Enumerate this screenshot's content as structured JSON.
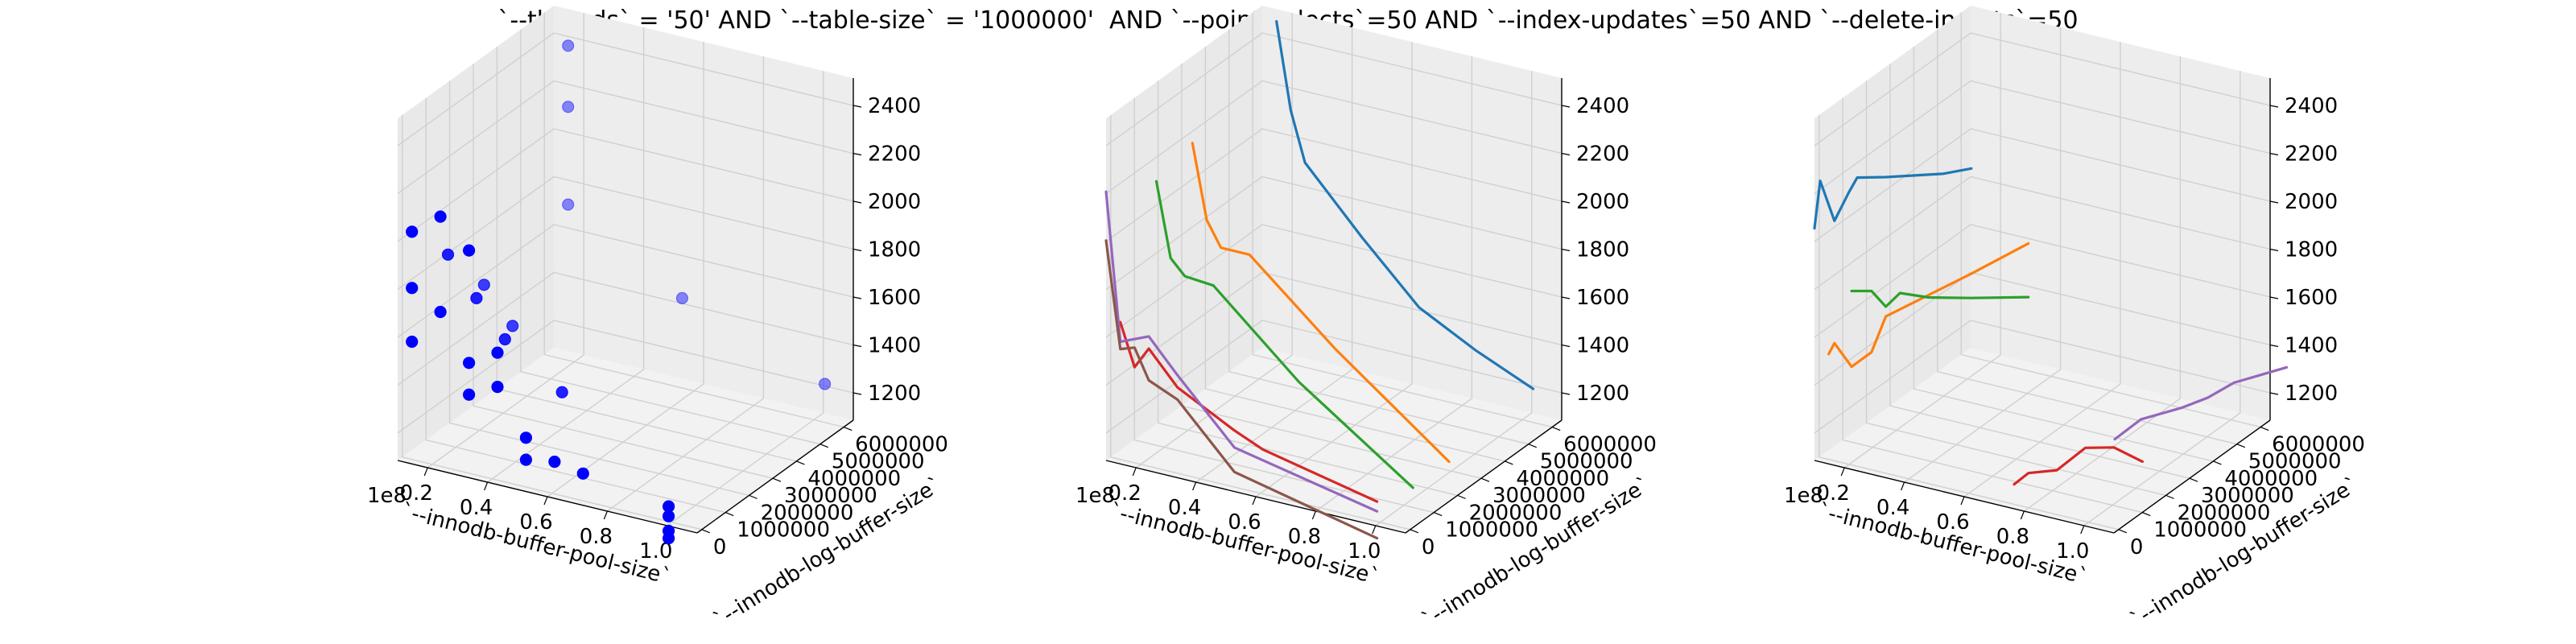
{
  "figure": {
    "title": "`--threads` = '50' AND `--table-size` = '1000000'  AND `--point-selects`=50 AND `--index-updates`=50 AND `--delete-inserts`=50"
  },
  "axes_common": {
    "xlabel": "`--innodb-buffer-pool-size`",
    "ylabel": "`--innodb-log-buffer-size`",
    "x_offset_text": "1e8",
    "x_ticks": [
      "0.2",
      "0.4",
      "0.6",
      "0.8",
      "1.0"
    ],
    "y_ticks": [
      "0",
      "1000000",
      "2000000",
      "3000000",
      "4000000",
      "5000000",
      "6000000"
    ],
    "z_ticks": [
      "1200",
      "1400",
      "1600",
      "1800",
      "2000",
      "2200",
      "2400"
    ],
    "grid": true,
    "pane_color": "#f2f2f2"
  },
  "chart_data": [
    {
      "type": "scatter",
      "xlim": [
        0.05,
        1.1
      ],
      "ylim": [
        0,
        6500000
      ],
      "zlim": [
        1100,
        2500
      ],
      "color": "#0000ff",
      "points": [
        {
          "x": 0.1,
          "y": 0,
          "z": 2050
        },
        {
          "x": 0.1,
          "y": 0,
          "z": 1820
        },
        {
          "x": 0.1,
          "y": 0,
          "z": 1600
        },
        {
          "x": 0.2,
          "y": 0,
          "z": 2140
        },
        {
          "x": 0.2,
          "y": 0,
          "z": 1750
        },
        {
          "x": 0.3,
          "y": 0,
          "z": 2030
        },
        {
          "x": 0.3,
          "y": 0,
          "z": 1570
        },
        {
          "x": 0.3,
          "y": 0,
          "z": 1440
        },
        {
          "x": 0.4,
          "y": 0,
          "z": 1640
        },
        {
          "x": 0.4,
          "y": 0,
          "z": 1500
        },
        {
          "x": 0.5,
          "y": 0,
          "z": 1320
        },
        {
          "x": 0.5,
          "y": 0,
          "z": 1230
        },
        {
          "x": 0.6,
          "y": 0,
          "z": 1250
        },
        {
          "x": 0.7,
          "y": 0,
          "z": 1230
        },
        {
          "x": 1.0,
          "y": 0,
          "z": 1180
        },
        {
          "x": 1.0,
          "y": 0,
          "z": 1140
        },
        {
          "x": 1.0,
          "y": 0,
          "z": 1080
        },
        {
          "x": 1.0,
          "y": 0,
          "z": 1050
        },
        {
          "x": 0.1,
          "y": 1500000,
          "z": 1850
        },
        {
          "x": 0.2,
          "y": 1500000,
          "z": 1700
        },
        {
          "x": 0.3,
          "y": 1500000,
          "z": 1560
        },
        {
          "x": 0.5,
          "y": 1500000,
          "z": 1400
        },
        {
          "x": 0.1,
          "y": 3000000,
          "z": 1620
        },
        {
          "x": 0.2,
          "y": 3000000,
          "z": 1480
        },
        {
          "x": 0.1,
          "y": 6500000,
          "z": 2350
        },
        {
          "x": 0.1,
          "y": 6500000,
          "z": 2100
        },
        {
          "x": 0.1,
          "y": 6500000,
          "z": 1700
        },
        {
          "x": 0.5,
          "y": 6500000,
          "z": 1430
        },
        {
          "x": 1.0,
          "y": 6500000,
          "z": 1220
        }
      ]
    },
    {
      "type": "line",
      "xlim": [
        0.05,
        1.1
      ],
      "ylim": [
        0,
        6500000
      ],
      "zlim": [
        1100,
        2500
      ],
      "series": [
        {
          "color": "#1f77b4",
          "points": [
            [
              0.1,
              6500000,
              2450
            ],
            [
              0.15,
              6500000,
              2100
            ],
            [
              0.2,
              6500000,
              1900
            ],
            [
              0.4,
              6500000,
              1650
            ],
            [
              0.6,
              6500000,
              1420
            ],
            [
              0.8,
              6500000,
              1300
            ],
            [
              1.0,
              6500000,
              1200
            ]
          ]
        },
        {
          "color": "#ff7f0e",
          "points": [
            [
              0.1,
              3000000,
              2200
            ],
            [
              0.15,
              3000000,
              1900
            ],
            [
              0.2,
              3000000,
              1800
            ],
            [
              0.3,
              3000000,
              1800
            ],
            [
              0.6,
              3000000,
              1500
            ],
            [
              1.0,
              3000000,
              1150
            ]
          ]
        },
        {
          "color": "#2ca02c",
          "points": [
            [
              0.1,
              1500000,
              2150
            ],
            [
              0.15,
              1500000,
              1850
            ],
            [
              0.2,
              1500000,
              1790
            ],
            [
              0.3,
              1500000,
              1780
            ],
            [
              0.6,
              1500000,
              1470
            ],
            [
              1.0,
              1500000,
              1150
            ]
          ]
        },
        {
          "color": "#d62728",
          "points": [
            [
              0.1,
              0,
              1680
            ],
            [
              0.15,
              0,
              1510
            ],
            [
              0.2,
              0,
              1600
            ],
            [
              0.3,
              0,
              1470
            ],
            [
              0.5,
              0,
              1350
            ],
            [
              0.6,
              0,
              1300
            ],
            [
              1.0,
              0,
              1200
            ]
          ]
        },
        {
          "color": "#9467bd",
          "points": [
            [
              0.05,
              0,
              2200
            ],
            [
              0.1,
              0,
              1600
            ],
            [
              0.2,
              0,
              1650
            ],
            [
              0.3,
              0,
              1520
            ],
            [
              0.5,
              0,
              1280
            ],
            [
              1.0,
              0,
              1160
            ]
          ]
        },
        {
          "color": "#8c564b",
          "points": [
            [
              0.05,
              0,
              2000
            ],
            [
              0.1,
              0,
              1570
            ],
            [
              0.15,
              0,
              1590
            ],
            [
              0.2,
              0,
              1470
            ],
            [
              0.3,
              0,
              1420
            ],
            [
              0.5,
              0,
              1180
            ],
            [
              1.0,
              0,
              1050
            ]
          ]
        }
      ]
    },
    {
      "type": "line",
      "xlim": [
        0.05,
        1.1
      ],
      "ylim": [
        0,
        6500000
      ],
      "zlim": [
        1100,
        2500
      ],
      "series": [
        {
          "color": "#1f77b4",
          "points": [
            [
              0.05,
              0,
              2050
            ],
            [
              0.07,
              0,
              2250
            ],
            [
              0.12,
              0,
              2100
            ],
            [
              0.17,
              0,
              2230
            ],
            [
              0.2,
              0,
              2300
            ],
            [
              0.3,
              0,
              2330
            ],
            [
              0.5,
              0,
              2400
            ],
            [
              0.6,
              0,
              2450
            ]
          ]
        },
        {
          "color": "#ff7f0e",
          "points": [
            [
              0.1,
              0,
              1550
            ],
            [
              0.12,
              0,
              1600
            ],
            [
              0.18,
              0,
              1520
            ],
            [
              0.25,
              0,
              1600
            ],
            [
              0.3,
              0,
              1760
            ],
            [
              0.6,
              0,
              2020
            ],
            [
              0.8,
              0,
              2200
            ]
          ]
        },
        {
          "color": "#2ca02c",
          "points": [
            [
              0.18,
              0,
              1830
            ],
            [
              0.25,
              0,
              1850
            ],
            [
              0.3,
              0,
              1800
            ],
            [
              0.35,
              0,
              1870
            ],
            [
              0.45,
              0,
              1880
            ],
            [
              0.6,
              0,
              1920
            ],
            [
              0.8,
              0,
              1980
            ]
          ]
        },
        {
          "color": "#d62728",
          "points": [
            [
              0.75,
              0,
              1200
            ],
            [
              0.8,
              0,
              1260
            ],
            [
              0.9,
              0,
              1300
            ],
            [
              1.0,
              0,
              1420
            ],
            [
              1.1,
              0,
              1450
            ],
            [
              1.2,
              0,
              1420
            ]
          ]
        },
        {
          "color": "#9467bd",
          "points": [
            [
              0.85,
              3000000,
              1200
            ],
            [
              0.9,
              3500000,
              1260
            ],
            [
              1.0,
              4000000,
              1300
            ],
            [
              1.05,
              4500000,
              1320
            ],
            [
              1.1,
              5000000,
              1360
            ],
            [
              1.2,
              6000000,
              1380
            ]
          ]
        }
      ]
    }
  ]
}
